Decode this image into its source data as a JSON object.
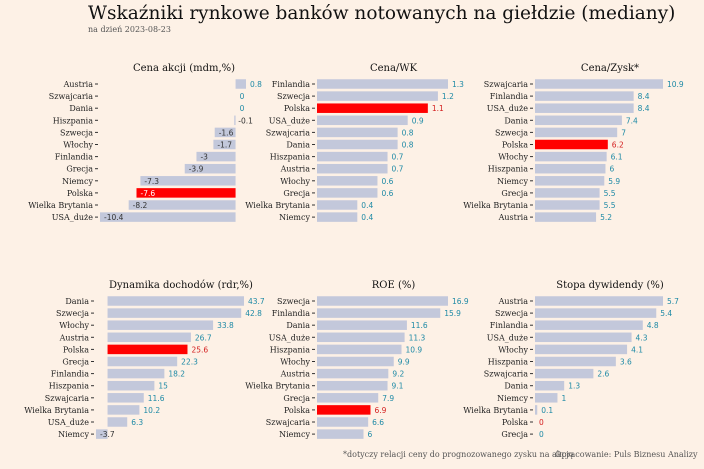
{
  "header": {
    "title": "Wskaźniki rynkowe banków notowanych na giełdzie (mediany)",
    "subtitle": "na dzień 2023-08-23"
  },
  "footer": {
    "footnote": "*dotyczy relacji ceny do prognozowanego zysku na akcję",
    "credit": "Opracowanie: Puls Biznesu Analizy"
  },
  "colors": {
    "bar": "#c3c8db",
    "highlight": "#ff0000",
    "value_positive": "#1f8aa6",
    "value_highlight": "#d42020",
    "background": "#fdf1e6"
  },
  "chart_data": [
    {
      "type": "bar",
      "orientation": "horizontal",
      "title": "Cena akcji (mdm,%)",
      "highlight": "Polska",
      "categories": [
        "Austria",
        "Szwajcaria",
        "Dania",
        "Hiszpania",
        "Szwecja",
        "Włochy",
        "Finlandia",
        "Grecja",
        "Niemcy",
        "Polska",
        "Wielka Brytania",
        "USA_duże"
      ],
      "values": [
        0.8,
        0,
        0,
        -0.1,
        -1.6,
        -1.7,
        -3,
        -3.9,
        -7.3,
        -7.6,
        -8.2,
        -10.4
      ],
      "labels": [
        "0.8",
        "0",
        "0",
        "-0.1",
        "-1.6",
        "-1.7",
        "-3",
        "-3.9",
        "-7.3",
        "-7.6",
        "-8.2",
        "-10.4"
      ]
    },
    {
      "type": "bar",
      "orientation": "horizontal",
      "title": "Cena/WK",
      "highlight": "Polska",
      "categories": [
        "Finlandia",
        "Szwecja",
        "Polska",
        "USA_duże",
        "Szwajcaria",
        "Dania",
        "Hiszpania",
        "Austria",
        "Włochy",
        "Grecja",
        "Wielka Brytania",
        "Niemcy"
      ],
      "values": [
        1.3,
        1.2,
        1.1,
        0.9,
        0.8,
        0.8,
        0.7,
        0.7,
        0.6,
        0.6,
        0.4,
        0.4
      ],
      "labels": [
        "1.3",
        "1.2",
        "1.1",
        "0.9",
        "0.8",
        "0.8",
        "0.7",
        "0.7",
        "0.6",
        "0.6",
        "0.4",
        "0.4"
      ]
    },
    {
      "type": "bar",
      "orientation": "horizontal",
      "title": "Cena/Zysk*",
      "highlight": "Polska",
      "categories": [
        "Szwajcaria",
        "Finlandia",
        "USA_duże",
        "Dania",
        "Szwecja",
        "Polska",
        "Włochy",
        "Hiszpania",
        "Niemcy",
        "Grecja",
        "Wielka Brytania",
        "Austria"
      ],
      "values": [
        10.9,
        8.4,
        8.4,
        7.4,
        7,
        6.2,
        6.1,
        6,
        5.9,
        5.5,
        5.5,
        5.2
      ],
      "labels": [
        "10.9",
        "8.4",
        "8.4",
        "7.4",
        "7",
        "6.2",
        "6.1",
        "6",
        "5.9",
        "5.5",
        "5.5",
        "5.2"
      ]
    },
    {
      "type": "bar",
      "orientation": "horizontal",
      "title": "Dynamika dochodów (rdr,%)",
      "highlight": "Polska",
      "categories": [
        "Dania",
        "Szwecja",
        "Włochy",
        "Austria",
        "Polska",
        "Grecja",
        "Finlandia",
        "Hiszpania",
        "Szwajcaria",
        "Wielka Brytania",
        "USA_duże",
        "Niemcy"
      ],
      "values": [
        43.7,
        42.8,
        33.8,
        26.7,
        25.6,
        22.3,
        18.2,
        15,
        11.6,
        10.2,
        6.3,
        -3.7
      ],
      "labels": [
        "43.7",
        "42.8",
        "33.8",
        "26.7",
        "25.6",
        "22.3",
        "18.2",
        "15",
        "11.6",
        "10.2",
        "6.3",
        "-3.7"
      ]
    },
    {
      "type": "bar",
      "orientation": "horizontal",
      "title": "ROE (%)",
      "highlight": "Polska",
      "categories": [
        "Szwecja",
        "Finlandia",
        "Dania",
        "USA_duże",
        "Hiszpania",
        "Włochy",
        "Austria",
        "Wielka Brytania",
        "Grecja",
        "Polska",
        "Szwajcaria",
        "Niemcy"
      ],
      "values": [
        16.9,
        15.9,
        11.6,
        11.3,
        10.9,
        9.9,
        9.2,
        9.1,
        7.9,
        6.9,
        6.6,
        6
      ],
      "labels": [
        "16.9",
        "15.9",
        "11.6",
        "11.3",
        "10.9",
        "9.9",
        "9.2",
        "9.1",
        "7.9",
        "6.9",
        "6.6",
        "6"
      ]
    },
    {
      "type": "bar",
      "orientation": "horizontal",
      "title": "Stopa dywidendy (%)",
      "highlight": "Polska",
      "categories": [
        "Austria",
        "Szwecja",
        "Finlandia",
        "USA_duże",
        "Włochy",
        "Hiszpania",
        "Szwajcaria",
        "Dania",
        "Niemcy",
        "Wielka Brytania",
        "Polska",
        "Grecja"
      ],
      "values": [
        5.7,
        5.4,
        4.8,
        4.3,
        4.1,
        3.6,
        2.6,
        1.3,
        1,
        0.1,
        0,
        0
      ],
      "labels": [
        "5.7",
        "5.4",
        "4.8",
        "4.3",
        "4.1",
        "3.6",
        "2.6",
        "1.3",
        "1",
        "0.1",
        "0",
        "0"
      ]
    }
  ]
}
